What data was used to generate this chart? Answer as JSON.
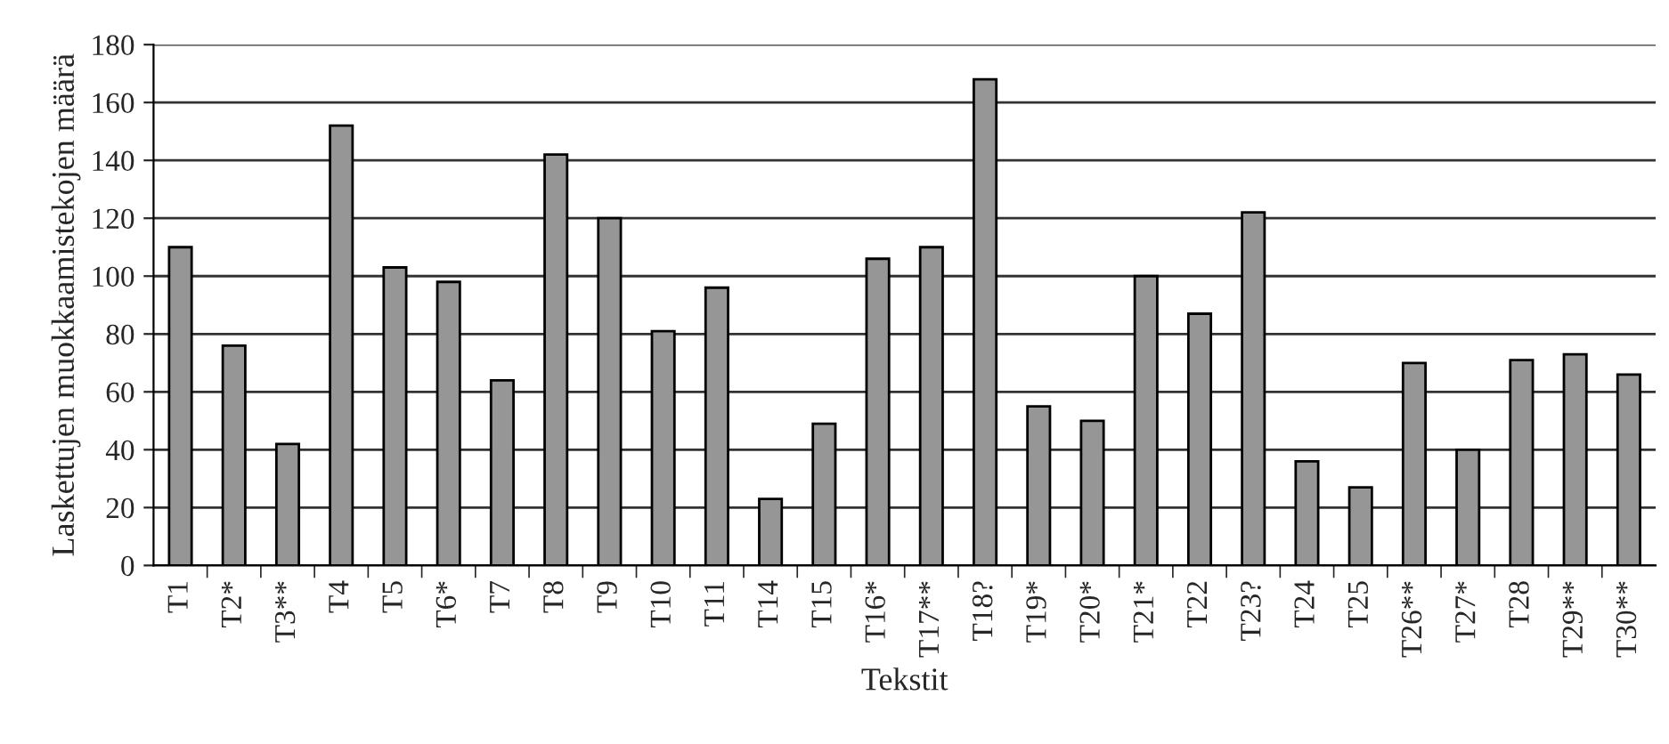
{
  "chart_data": {
    "type": "bar",
    "xlabel": "Tekstit",
    "ylabel": "Laskettujen muokkaamistekojen määrä",
    "categories": [
      "T1",
      "T2*",
      "T3**",
      "T4",
      "T5",
      "T6*",
      "T7",
      "T8",
      "T9",
      "T10",
      "T11",
      "T14",
      "T15",
      "T16*",
      "T17**",
      "T18?",
      "T19*",
      "T20*",
      "T21*",
      "T22",
      "T23?",
      "T24",
      "T25",
      "T26**",
      "T27*",
      "T28",
      "T29**",
      "T30**"
    ],
    "values": [
      110,
      76,
      42,
      152,
      103,
      98,
      64,
      142,
      120,
      81,
      96,
      23,
      49,
      106,
      110,
      168,
      55,
      50,
      100,
      87,
      122,
      36,
      27,
      70,
      40,
      71,
      73,
      66
    ],
    "color": "#969696",
    "ylim": [
      0,
      180
    ],
    "yticks": [
      0,
      20,
      40,
      60,
      80,
      100,
      120,
      140,
      160,
      180
    ],
    "grid": "y",
    "legend": false
  }
}
